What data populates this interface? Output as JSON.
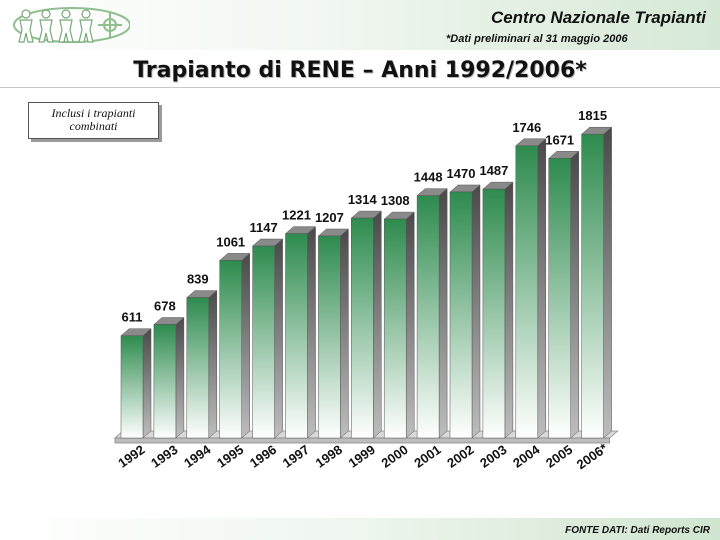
{
  "header": {
    "org_name": "Centro Nazionale Trapianti",
    "note": "*Dati preliminari al 31 maggio 2006"
  },
  "chart_title": "Trapianto di RENE – Anni 1992/2006*",
  "annotation": "Inclusi i trapianti combinati",
  "footer": {
    "source": "FONTE DATI: Dati Reports CIR"
  },
  "colors": {
    "bar_top": "#2e8b4e",
    "bar_bottom": "#ffffff",
    "bar_side": "#1e5a33"
  },
  "chart_data": {
    "type": "bar",
    "categories": [
      "1992",
      "1993",
      "1994",
      "1995",
      "1996",
      "1997",
      "1998",
      "1999",
      "2000",
      "2001",
      "2002",
      "2003",
      "2004",
      "2005",
      "2006*"
    ],
    "values": [
      611,
      678,
      839,
      1061,
      1147,
      1221,
      1207,
      1314,
      1308,
      1448,
      1470,
      1487,
      1746,
      1671,
      1815
    ],
    "ylim": [
      0,
      1900
    ],
    "grid": false,
    "legend": "none"
  }
}
